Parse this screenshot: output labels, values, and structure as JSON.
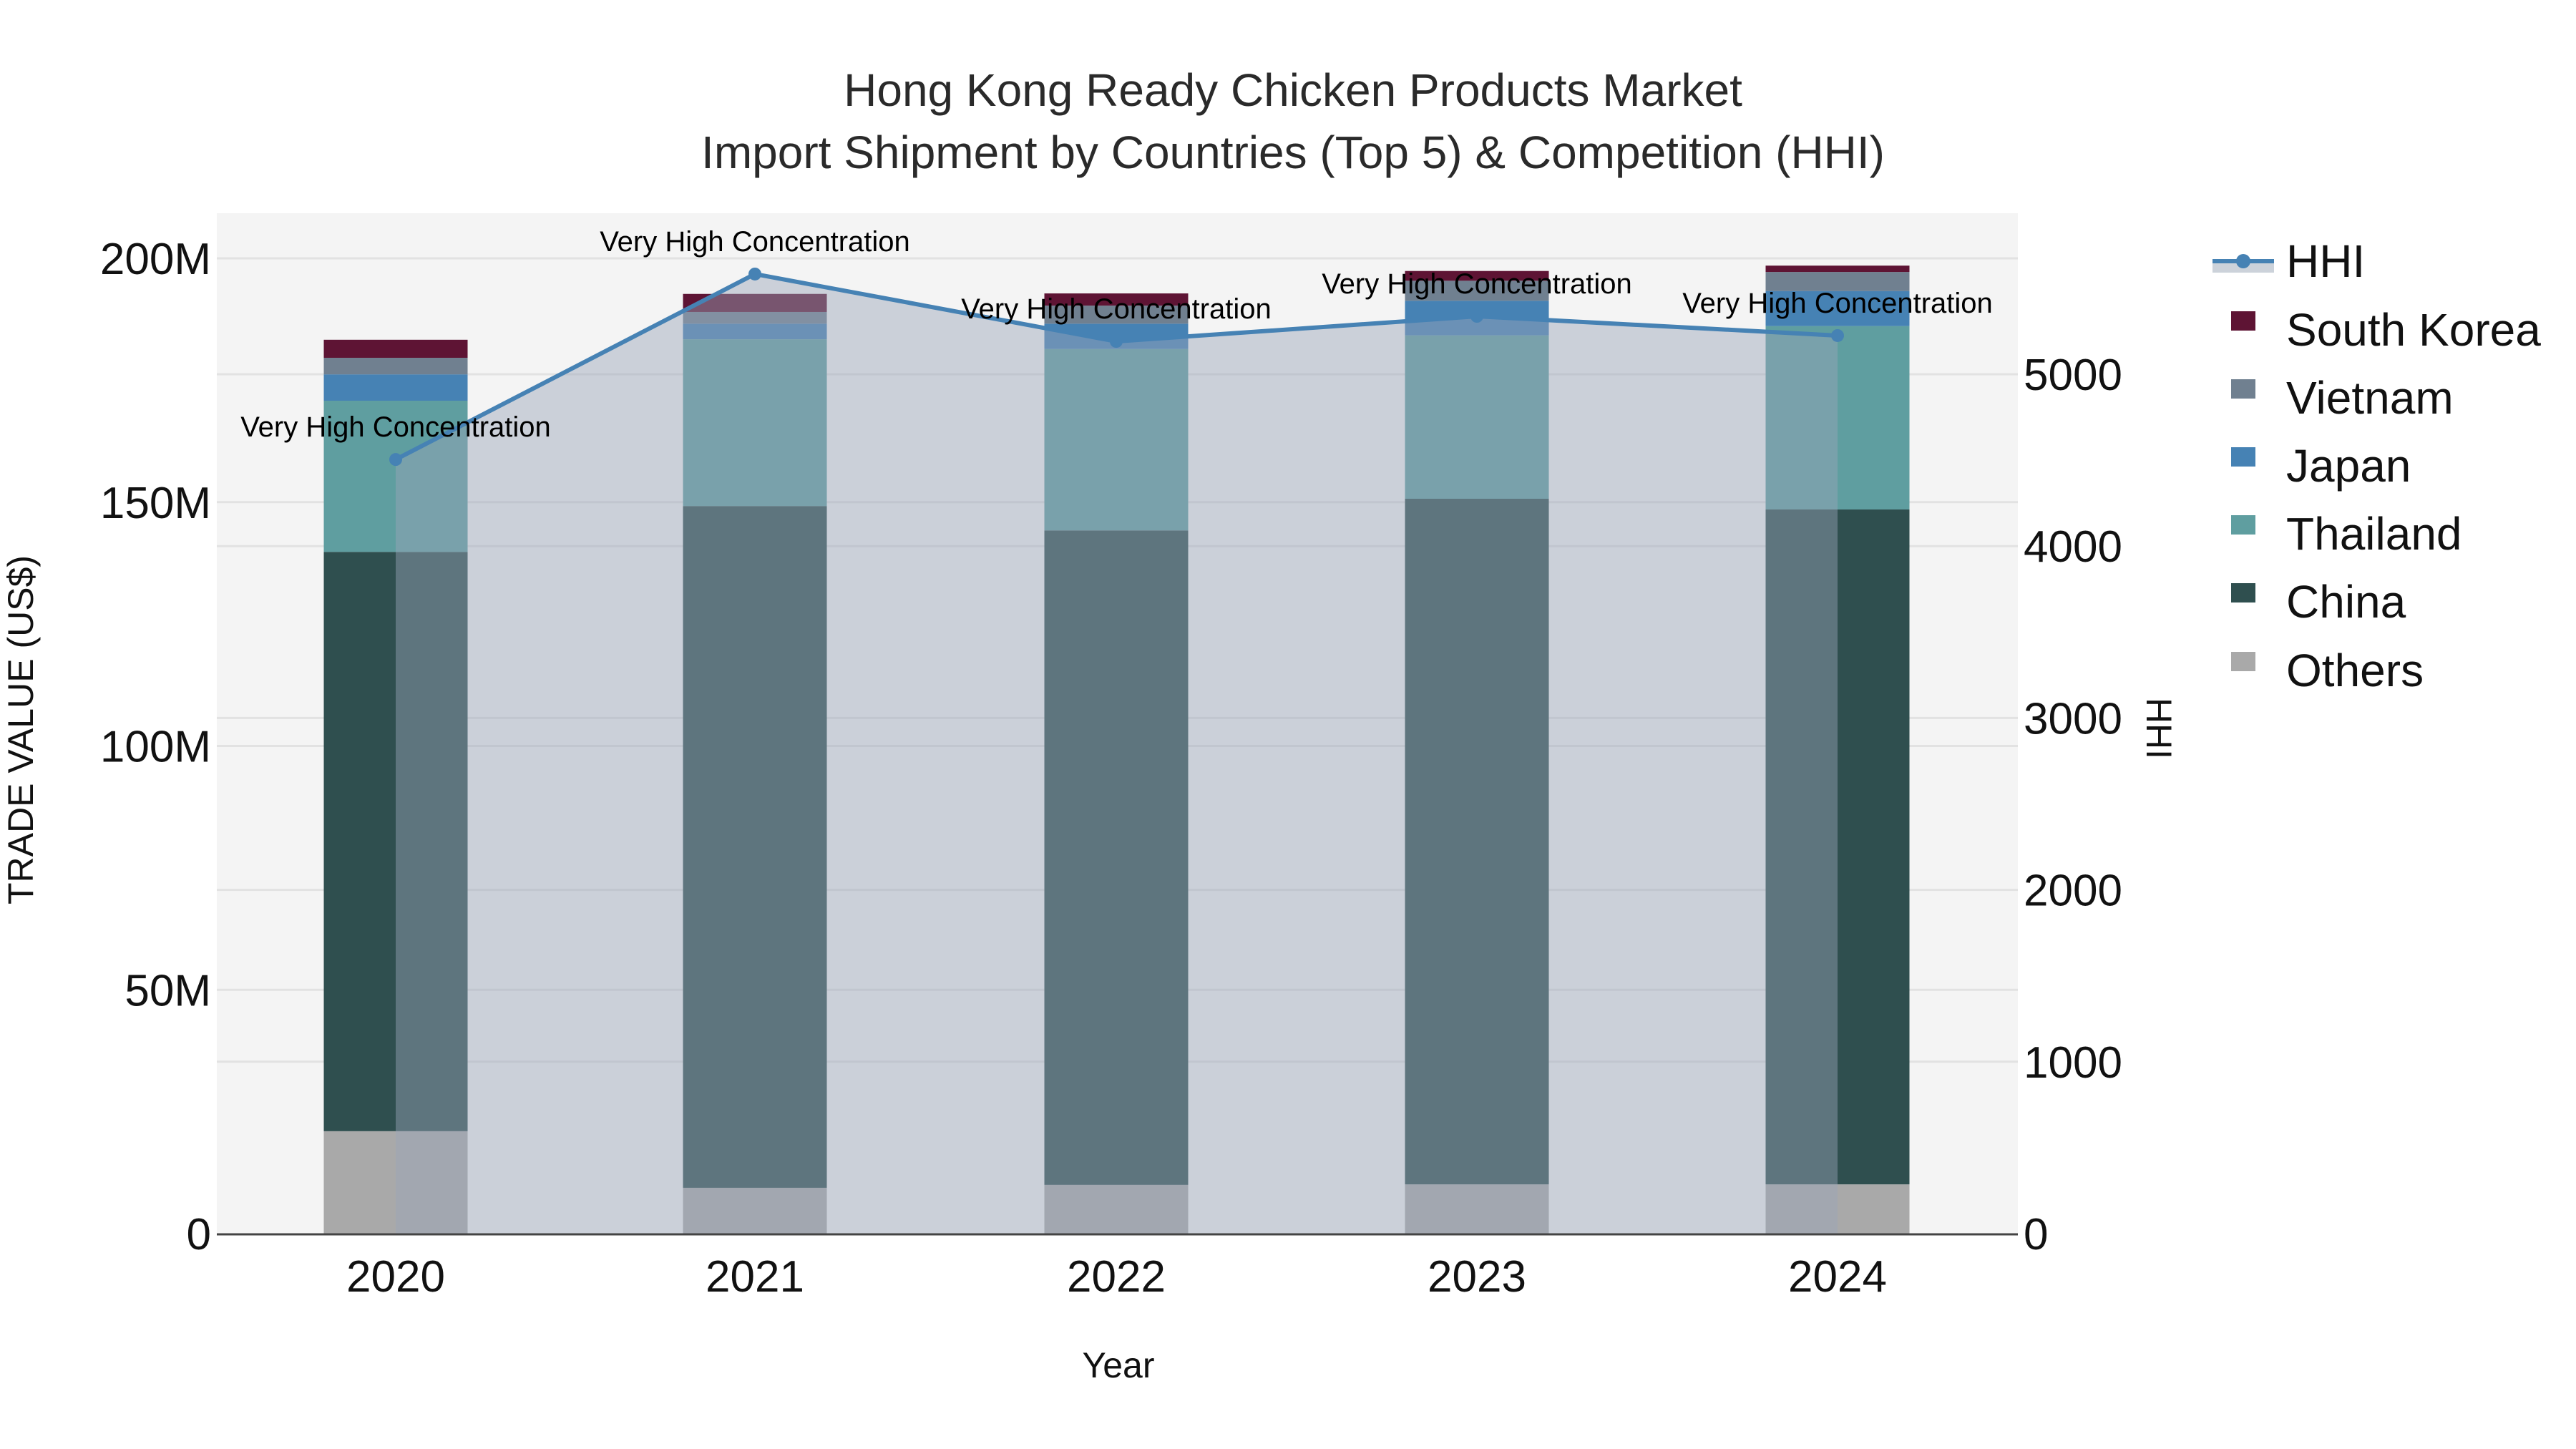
{
  "title": {
    "line1": "Hong Kong Ready Chicken Products Market",
    "line2": "Import Shipment by Countries (Top 5) & Competition (HHI)"
  },
  "axes": {
    "x_title": "Year",
    "y_left_title": "TRADE VALUE (US$)",
    "y_right_title": "HHI",
    "y_left_ticks": [
      "0",
      "50M",
      "100M",
      "150M",
      "200M"
    ],
    "y_right_ticks": [
      "0",
      "1000",
      "2000",
      "3000",
      "4000",
      "5000"
    ],
    "x_ticks": [
      "2020",
      "2021",
      "2022",
      "2023",
      "2024"
    ]
  },
  "legend": {
    "items": [
      {
        "label": "HHI",
        "color": "#4682b4",
        "kind": "line"
      },
      {
        "label": "South Korea",
        "color": "#5e1434",
        "kind": "box"
      },
      {
        "label": "Vietnam",
        "color": "#708090",
        "kind": "box"
      },
      {
        "label": "Japan",
        "color": "#4682b4",
        "kind": "box"
      },
      {
        "label": "Thailand",
        "color": "#5f9ea0",
        "kind": "box"
      },
      {
        "label": "China",
        "color": "#2f4f4f",
        "kind": "box"
      },
      {
        "label": "Others",
        "color": "#a9a9a9",
        "kind": "box"
      }
    ]
  },
  "annotations": [
    "Very High Concentration",
    "Very High Concentration",
    "Very High Concentration",
    "Very High Concentration",
    "Very High Concentration"
  ],
  "chart_data": {
    "type": "bar",
    "subtype": "stacked bar + line (secondary axis)",
    "title": "Hong Kong Ready Chicken Products Market Import Shipment by Countries (Top 5) & Competition (HHI)",
    "xlabel": "Year",
    "ylabel": "TRADE VALUE (US$)",
    "y2label": "HHI",
    "categories": [
      "2020",
      "2021",
      "2022",
      "2023",
      "2024"
    ],
    "ylim": [
      0,
      208000000
    ],
    "y2lim": [
      0,
      5900
    ],
    "grid": true,
    "legend_position": "right",
    "series": [
      {
        "name": "Others",
        "color": "#a9a9a9",
        "values": [
          21000000,
          9400000,
          10000000,
          10100000,
          10100000
        ]
      },
      {
        "name": "China",
        "color": "#2f4f4f",
        "values": [
          118800000,
          139800000,
          134200000,
          140600000,
          138400000
        ]
      },
      {
        "name": "Thailand",
        "color": "#5f9ea0",
        "values": [
          31000000,
          34200000,
          37200000,
          33500000,
          37600000
        ]
      },
      {
        "name": "Japan",
        "color": "#4682b4",
        "values": [
          5400000,
          3200000,
          5200000,
          7100000,
          7200000
        ]
      },
      {
        "name": "Vietnam",
        "color": "#708090",
        "values": [
          3400000,
          2400000,
          3700000,
          4100000,
          3900000
        ]
      },
      {
        "name": "South Korea",
        "color": "#5e1434",
        "values": [
          3700000,
          3700000,
          2500000,
          2000000,
          1300000
        ]
      },
      {
        "name": "HHI",
        "type": "line",
        "axis": "y2",
        "color": "#4682b4",
        "values": [
          4504,
          5583,
          5191,
          5337,
          5225
        ]
      }
    ],
    "annotations": [
      {
        "x": "2020",
        "text": "Very High Concentration"
      },
      {
        "x": "2021",
        "text": "Very High Concentration"
      },
      {
        "x": "2022",
        "text": "Very High Concentration"
      },
      {
        "x": "2023",
        "text": "Very High Concentration"
      },
      {
        "x": "2024",
        "text": "Very High Concentration"
      }
    ]
  }
}
